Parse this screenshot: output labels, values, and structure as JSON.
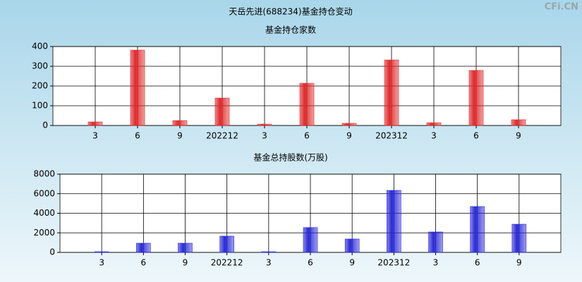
{
  "title": "天岳先进(688234)基金持仓变动",
  "watermark": "CFi.CN",
  "chart_data": [
    {
      "type": "bar",
      "title": "基金持仓家数",
      "categories": [
        "3",
        "6",
        "9",
        "202212",
        "3",
        "6",
        "9",
        "202312",
        "3",
        "6",
        "9"
      ],
      "values": [
        18,
        382,
        25,
        139,
        7,
        214,
        11,
        332,
        14,
        279,
        29
      ],
      "color": "#e02828",
      "ylim": [
        0,
        400
      ],
      "yticks": [
        0,
        100,
        200,
        300,
        400
      ],
      "grid": true
    },
    {
      "type": "bar",
      "title": "基金总持股数(万股)",
      "categories": [
        "3",
        "6",
        "9",
        "202212",
        "3",
        "6",
        "9",
        "202312",
        "3",
        "6",
        "9"
      ],
      "values": [
        70,
        940,
        940,
        1660,
        70,
        2540,
        1370,
        6340,
        2090,
        4690,
        2880
      ],
      "color": "#2828d8",
      "ylim": [
        0,
        8000
      ],
      "yticks": [
        0,
        2000,
        4000,
        6000,
        8000
      ],
      "grid": true
    }
  ]
}
